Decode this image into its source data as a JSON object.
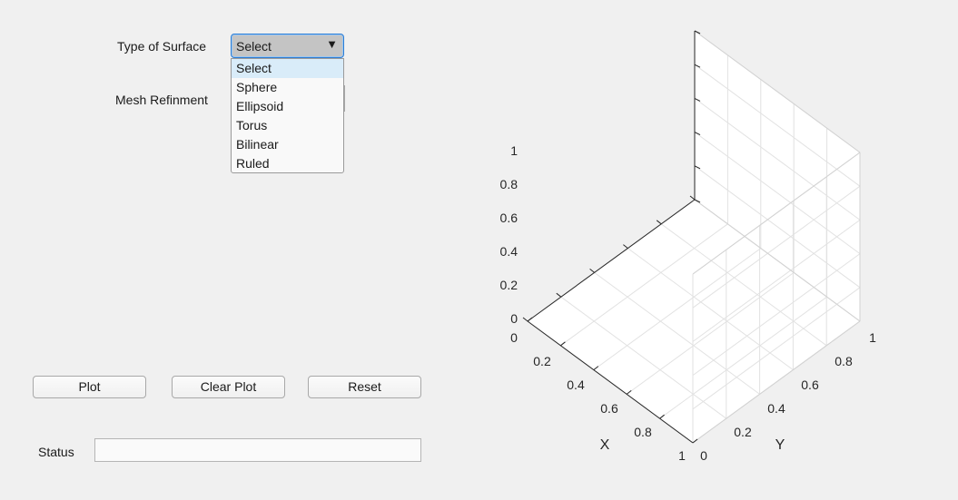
{
  "controls": {
    "surface_type_label": "Type of Surface",
    "surface_type_value": "Select",
    "surface_options": [
      "Select",
      "Sphere",
      "Ellipsoid",
      "Torus",
      "Bilinear",
      "Ruled"
    ],
    "mesh_refinement_label": "Mesh Refinment"
  },
  "buttons": {
    "plot": "Plot",
    "clear_plot": "Clear Plot",
    "reset": "Reset"
  },
  "status": {
    "label": "Status",
    "value": ""
  },
  "axes": {
    "x_label": "X",
    "y_label": "Y",
    "x_ticks": [
      "0",
      "0.2",
      "0.4",
      "0.6",
      "0.8",
      "1"
    ],
    "y_ticks": [
      "0",
      "0.2",
      "0.4",
      "0.6",
      "0.8",
      "1"
    ],
    "z_ticks": [
      "0",
      "0.2",
      "0.4",
      "0.6",
      "0.8",
      "1"
    ]
  },
  "colors": {
    "background": "#f0f0f0",
    "focus_border": "#2c7ed6",
    "selected_option": "#d9ecf9",
    "grid": "#e2e2e2"
  }
}
